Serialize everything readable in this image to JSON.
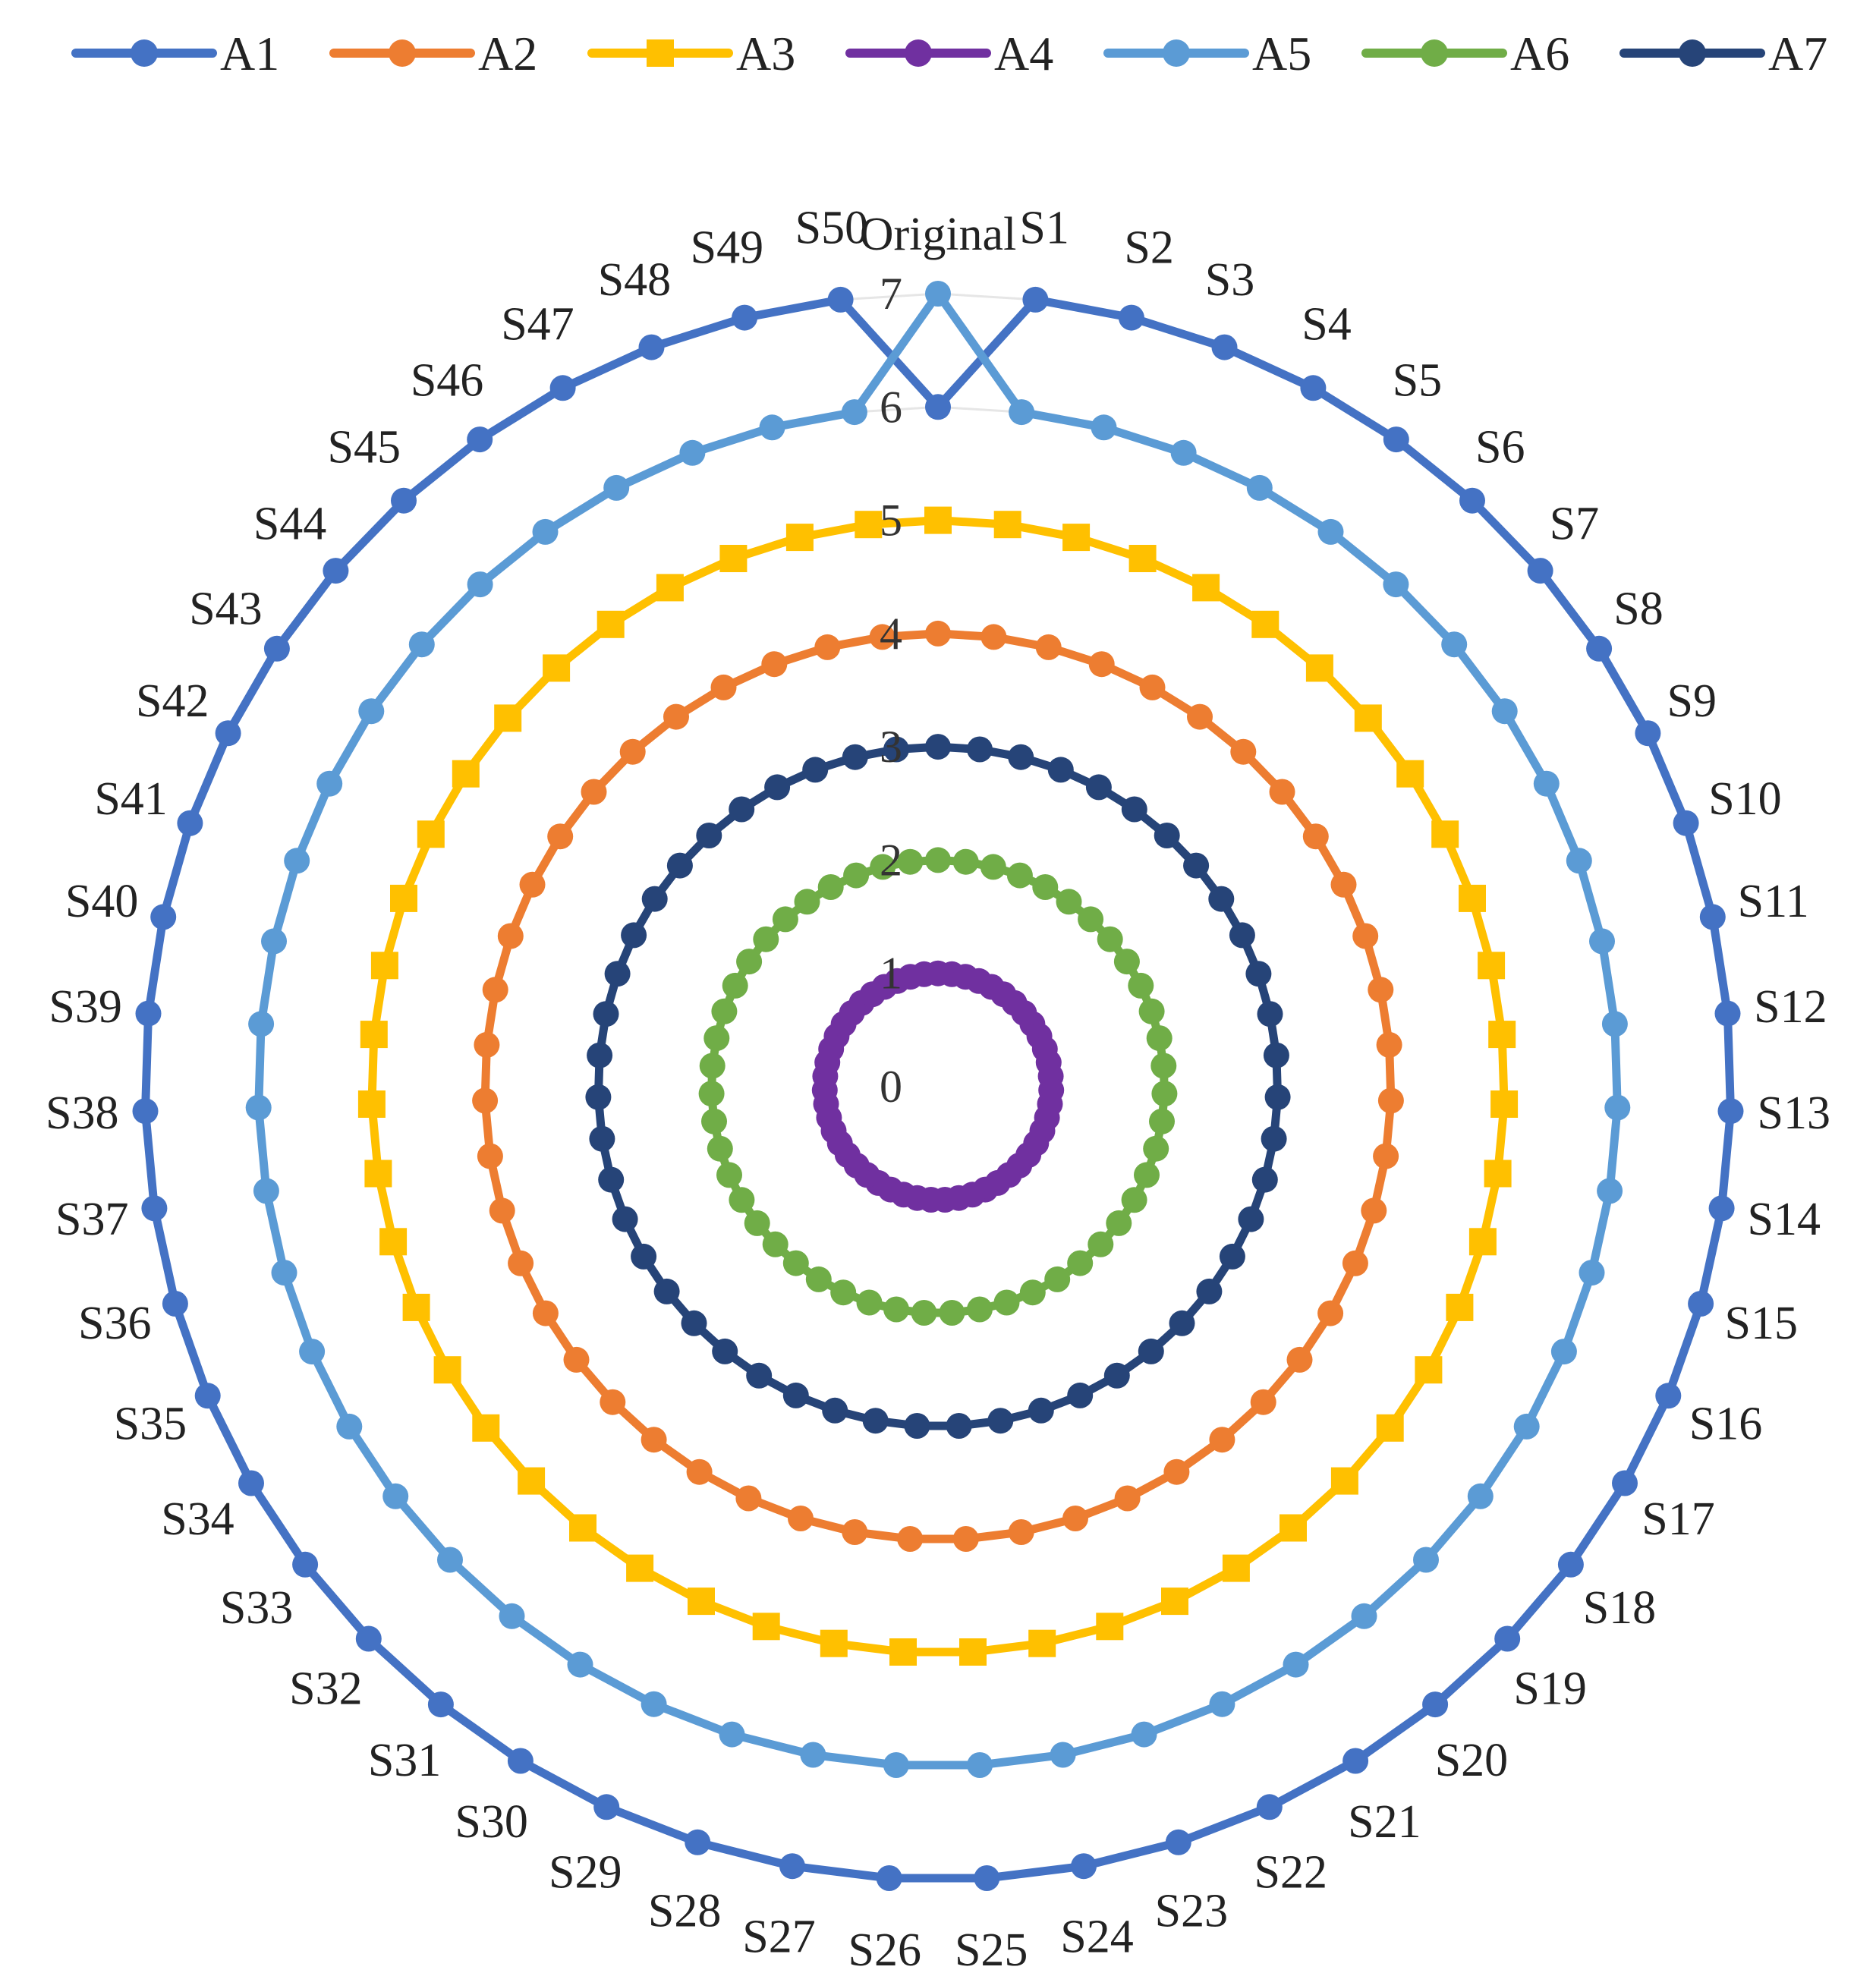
{
  "chart_data": {
    "type": "radar",
    "categories": [
      "Original",
      "S1",
      "S2",
      "S3",
      "S4",
      "S5",
      "S6",
      "S7",
      "S8",
      "S9",
      "S10",
      "S11",
      "S12",
      "S13",
      "S14",
      "S15",
      "S16",
      "S17",
      "S18",
      "S19",
      "S20",
      "S21",
      "S22",
      "S23",
      "S24",
      "S25",
      "S26",
      "S27",
      "S28",
      "S29",
      "S30",
      "S31",
      "S32",
      "S33",
      "S34",
      "S35",
      "S36",
      "S37",
      "S38",
      "S39",
      "S40",
      "S41",
      "S42",
      "S43",
      "S44",
      "S45",
      "S46",
      "S47",
      "S48",
      "S49",
      "S50"
    ],
    "rlim": [
      0,
      7
    ],
    "ticks": [
      "0",
      "1",
      "2",
      "3",
      "4",
      "5",
      "6",
      "7"
    ],
    "legend_position": "top",
    "series": [
      {
        "name": "A1",
        "color": "#4472C4",
        "marker": "circle",
        "values": [
          6,
          7,
          7,
          7,
          7,
          7,
          7,
          7,
          7,
          7,
          7,
          7,
          7,
          7,
          7,
          7,
          7,
          7,
          7,
          7,
          7,
          7,
          7,
          7,
          7,
          7,
          7,
          7,
          7,
          7,
          7,
          7,
          7,
          7,
          7,
          7,
          7,
          7,
          7,
          7,
          7,
          7,
          7,
          7,
          7,
          7,
          7,
          7,
          7,
          7,
          7
        ]
      },
      {
        "name": "A2",
        "color": "#ED7D31",
        "marker": "circle",
        "values": [
          4,
          4,
          4,
          4,
          4,
          4,
          4,
          4,
          4,
          4,
          4,
          4,
          4,
          4,
          4,
          4,
          4,
          4,
          4,
          4,
          4,
          4,
          4,
          4,
          4,
          4,
          4,
          4,
          4,
          4,
          4,
          4,
          4,
          4,
          4,
          4,
          4,
          4,
          4,
          4,
          4,
          4,
          4,
          4,
          4,
          4,
          4,
          4,
          4,
          4,
          4
        ]
      },
      {
        "name": "A3",
        "color": "#FFC000",
        "marker": "square",
        "values": [
          5,
          5,
          5,
          5,
          5,
          5,
          5,
          5,
          5,
          5,
          5,
          5,
          5,
          5,
          5,
          5,
          5,
          5,
          5,
          5,
          5,
          5,
          5,
          5,
          5,
          5,
          5,
          5,
          5,
          5,
          5,
          5,
          5,
          5,
          5,
          5,
          5,
          5,
          5,
          5,
          5,
          5,
          5,
          5,
          5,
          5,
          5,
          5,
          5,
          5,
          5
        ]
      },
      {
        "name": "A4",
        "color": "#7030A0",
        "marker": "circle",
        "values": [
          1,
          1,
          1,
          1,
          1,
          1,
          1,
          1,
          1,
          1,
          1,
          1,
          1,
          1,
          1,
          1,
          1,
          1,
          1,
          1,
          1,
          1,
          1,
          1,
          1,
          1,
          1,
          1,
          1,
          1,
          1,
          1,
          1,
          1,
          1,
          1,
          1,
          1,
          1,
          1,
          1,
          1,
          1,
          1,
          1,
          1,
          1,
          1,
          1,
          1,
          1
        ]
      },
      {
        "name": "A5",
        "color": "#5B9BD5",
        "marker": "circle",
        "values": [
          7,
          6,
          6,
          6,
          6,
          6,
          6,
          6,
          6,
          6,
          6,
          6,
          6,
          6,
          6,
          6,
          6,
          6,
          6,
          6,
          6,
          6,
          6,
          6,
          6,
          6,
          6,
          6,
          6,
          6,
          6,
          6,
          6,
          6,
          6,
          6,
          6,
          6,
          6,
          6,
          6,
          6,
          6,
          6,
          6,
          6,
          6,
          6,
          6,
          6,
          6
        ]
      },
      {
        "name": "A6",
        "color": "#70AD47",
        "marker": "circle",
        "values": [
          2,
          2,
          2,
          2,
          2,
          2,
          2,
          2,
          2,
          2,
          2,
          2,
          2,
          2,
          2,
          2,
          2,
          2,
          2,
          2,
          2,
          2,
          2,
          2,
          2,
          2,
          2,
          2,
          2,
          2,
          2,
          2,
          2,
          2,
          2,
          2,
          2,
          2,
          2,
          2,
          2,
          2,
          2,
          2,
          2,
          2,
          2,
          2,
          2,
          2,
          2
        ]
      },
      {
        "name": "A7",
        "color": "#264478",
        "marker": "circle",
        "values": [
          3,
          3,
          3,
          3,
          3,
          3,
          3,
          3,
          3,
          3,
          3,
          3,
          3,
          3,
          3,
          3,
          3,
          3,
          3,
          3,
          3,
          3,
          3,
          3,
          3,
          3,
          3,
          3,
          3,
          3,
          3,
          3,
          3,
          3,
          3,
          3,
          3,
          3,
          3,
          3,
          3,
          3,
          3,
          3,
          3,
          3,
          3,
          3,
          3,
          3,
          3
        ]
      }
    ],
    "draw_order": [
      "A1",
      "A5",
      "A3",
      "A2",
      "A7",
      "A6",
      "A4"
    ]
  }
}
